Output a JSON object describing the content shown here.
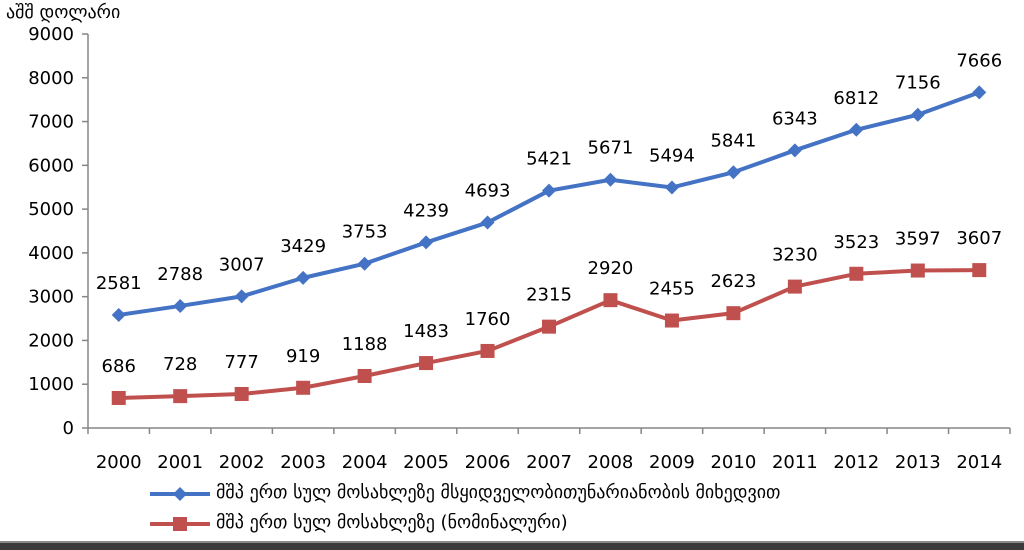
{
  "chart_data": {
    "type": "line",
    "ylabel": "აშშ დოლარი",
    "xlabel": "",
    "title": "",
    "ylim": [
      0,
      9000
    ],
    "yticks": [
      0,
      1000,
      2000,
      3000,
      4000,
      5000,
      6000,
      7000,
      8000,
      9000
    ],
    "grid": false,
    "legend_position": "bottom",
    "categories": [
      "2000",
      "2001",
      "2002",
      "2003",
      "2004",
      "2005",
      "2006",
      "2007",
      "2008",
      "2009",
      "2010",
      "2011",
      "2012",
      "2013",
      "2014"
    ],
    "series": [
      {
        "name": "მშპ ერთ სულ მოსახლეზე  მსყიდველობითუნარიანობის მიხედვით",
        "color": "#4472C4",
        "marker": "diamond",
        "values": [
          2581,
          2788,
          3007,
          3429,
          3753,
          4239,
          4693,
          5421,
          5671,
          5494,
          5841,
          6343,
          6812,
          7156,
          7666
        ]
      },
      {
        "name": "მშპ ერთ სულ მოსახლეზე (ნომინალური)",
        "color": "#C0504D",
        "marker": "square",
        "values": [
          686,
          728,
          777,
          919,
          1188,
          1483,
          1760,
          2315,
          2920,
          2455,
          2623,
          3230,
          3523,
          3597,
          3607
        ]
      }
    ]
  }
}
